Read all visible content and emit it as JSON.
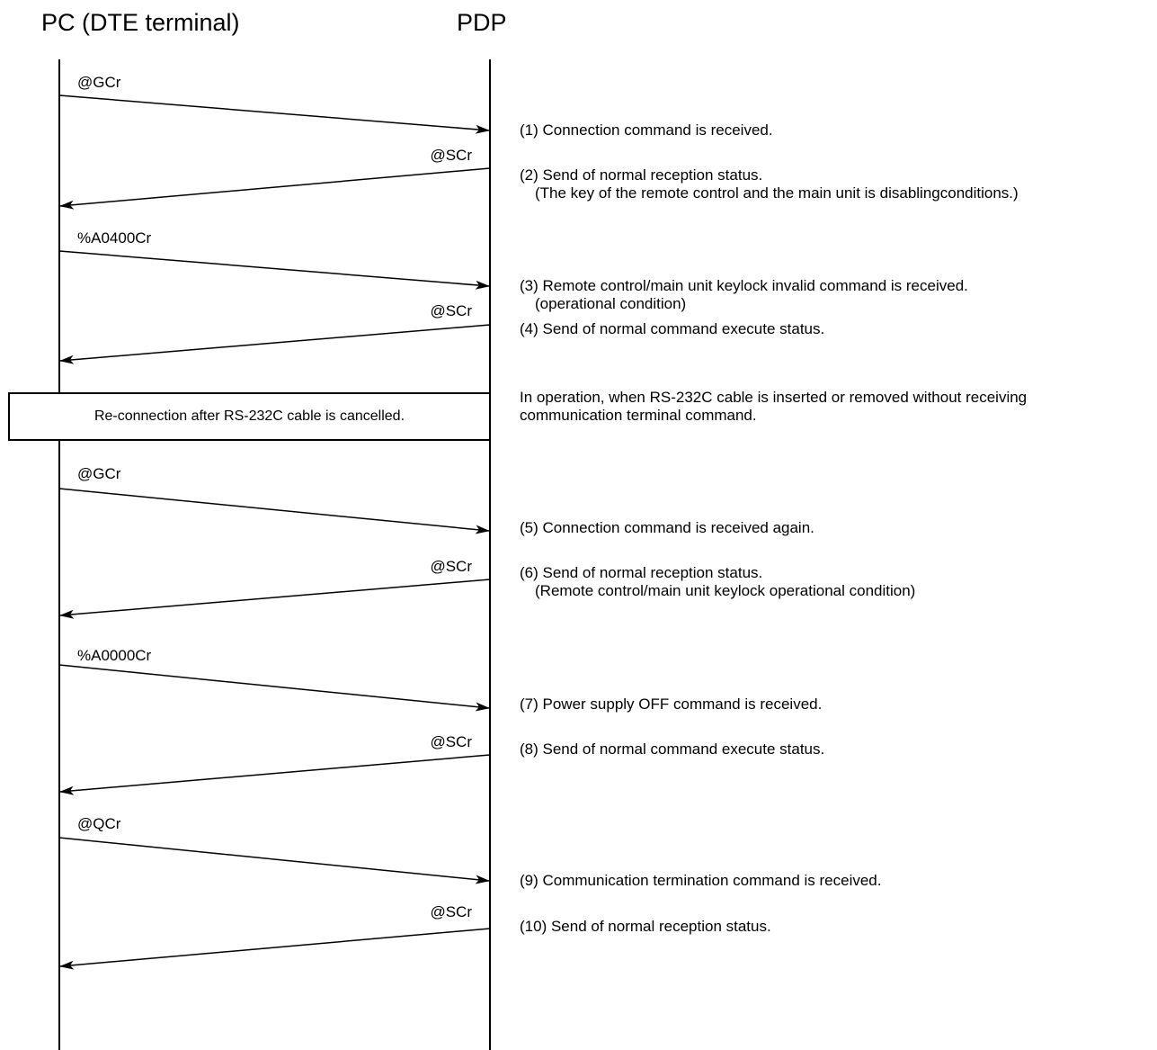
{
  "headers": {
    "pc": "PC (DTE terminal)",
    "pdp": "PDP"
  },
  "messages": [
    {
      "label": "@GCr",
      "direction": "pc-to-pdp"
    },
    {
      "label": "@SCr",
      "direction": "pdp-to-pc"
    },
    {
      "label": "%A0400Cr",
      "direction": "pc-to-pdp"
    },
    {
      "label": "@SCr",
      "direction": "pdp-to-pc"
    },
    {
      "label": "@GCr",
      "direction": "pc-to-pdp"
    },
    {
      "label": "@SCr",
      "direction": "pdp-to-pc"
    },
    {
      "label": "%A0000Cr",
      "direction": "pc-to-pdp"
    },
    {
      "label": "@SCr",
      "direction": "pdp-to-pc"
    },
    {
      "label": "@QCr",
      "direction": "pc-to-pdp"
    },
    {
      "label": "@SCr",
      "direction": "pdp-to-pc"
    }
  ],
  "notes": [
    {
      "line1": "(1) Connection command is received."
    },
    {
      "line1": "(2) Send of normal reception status.",
      "line2": "(The key of the remote control and the main unit is disablingconditions.)"
    },
    {
      "line1": "(3) Remote control/main unit keylock invalid command is received.",
      "line2": "(operational condition)"
    },
    {
      "line1": "(4) Send of normal command execute status."
    },
    {
      "line1": "(5) Connection command is received again."
    },
    {
      "line1": "(6) Send of normal reception status.",
      "line2": "(Remote control/main unit keylock operational condition)"
    },
    {
      "line1": "(7) Power supply OFF command is received."
    },
    {
      "line1": "(8) Send of normal command execute status."
    },
    {
      "line1": "(9) Communication termination command is received."
    },
    {
      "line1": "(10) Send of normal reception status."
    }
  ],
  "reconnect": {
    "box_label": "Re-connection after RS-232C cable is cancelled.",
    "note_line1": "In operation, when RS-232C cable is inserted or removed without receiving",
    "note_line2": "communication terminal command."
  }
}
